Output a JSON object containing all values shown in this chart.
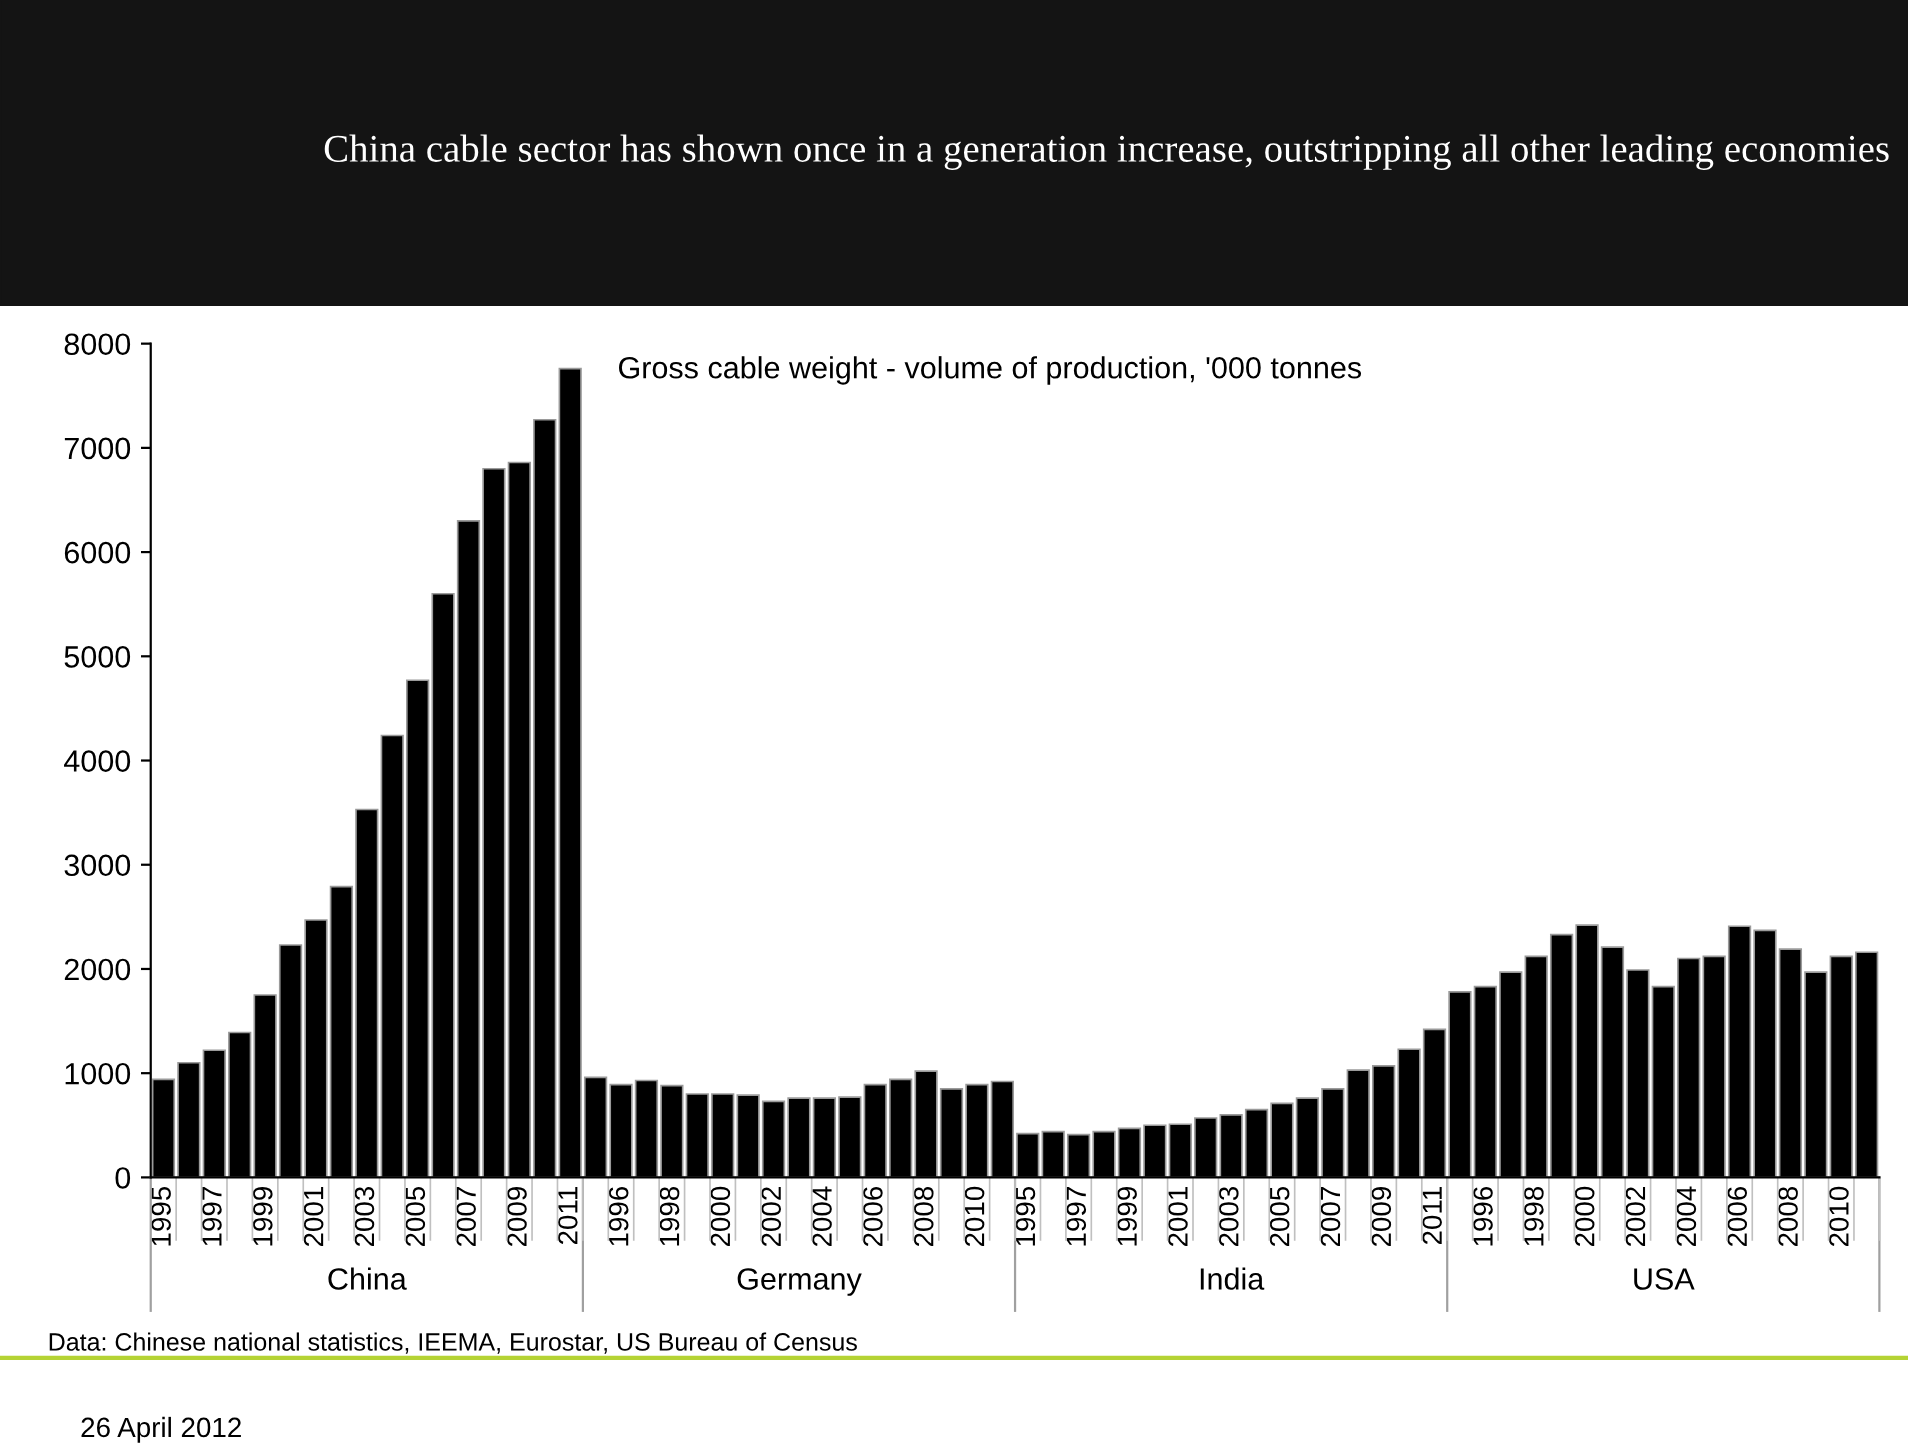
{
  "chart_data": {
    "type": "bar",
    "title": "China cable sector has shown once in a generation increase, outstripping all other leading economies",
    "categories": [
      "1995",
      null,
      "1997",
      null,
      "1999",
      null,
      "2001",
      null,
      "2003",
      null,
      "2005",
      null,
      "2007",
      null,
      "2009",
      null,
      "2011",
      null,
      "1996",
      null,
      "1998",
      null,
      "2000",
      null,
      "2002",
      null,
      "2004",
      null,
      "2006",
      null,
      "2008",
      null,
      "2010",
      null,
      "1995",
      null,
      "1997",
      null,
      "1999",
      null,
      "2001",
      null,
      "2003",
      null,
      "2005",
      null,
      "2007",
      null,
      "2009",
      null,
      "2011",
      null,
      "1996",
      null,
      "1998",
      null,
      "2000",
      null,
      "2002",
      null,
      "2004",
      null,
      "2006",
      null,
      "2008",
      null,
      "2010",
      null
    ],
    "series": [
      {
        "name": "China",
        "color": "#000000",
        "values": [
          940,
          1100,
          1220,
          1390,
          1750,
          2230,
          2470,
          2790,
          3530,
          4240,
          4770,
          5600,
          6300,
          6800,
          6860,
          7270,
          7760,
          null,
          null,
          null,
          null,
          null,
          null,
          null,
          null,
          null,
          null,
          null,
          null,
          null,
          null,
          null,
          null,
          null,
          null,
          null,
          null,
          null,
          null,
          null,
          null,
          null,
          null,
          null,
          null,
          null,
          null,
          null,
          null,
          null,
          null,
          null,
          null,
          null,
          null,
          null,
          null,
          null,
          null,
          null,
          null,
          null,
          null,
          null,
          null,
          null,
          null,
          null
        ]
      },
      {
        "name": "Germany",
        "color": "#000000",
        "values": [
          null,
          null,
          null,
          null,
          null,
          null,
          null,
          null,
          null,
          null,
          null,
          null,
          null,
          null,
          null,
          null,
          null,
          960,
          890,
          930,
          880,
          800,
          800,
          790,
          730,
          760,
          760,
          770,
          890,
          940,
          1020,
          850,
          890,
          920,
          null,
          null,
          null,
          null,
          null,
          null,
          null,
          null,
          null,
          null,
          null,
          null,
          null,
          null,
          null,
          null,
          null,
          null,
          null,
          null,
          null,
          null,
          null,
          null,
          null,
          null,
          null,
          null,
          null,
          null,
          null,
          null,
          null,
          null
        ]
      },
      {
        "name": "India",
        "color": "#000000",
        "values": [
          null,
          null,
          null,
          null,
          null,
          null,
          null,
          null,
          null,
          null,
          null,
          null,
          null,
          null,
          null,
          null,
          null,
          null,
          null,
          null,
          null,
          null,
          null,
          null,
          null,
          null,
          null,
          null,
          null,
          null,
          null,
          null,
          null,
          null,
          420,
          440,
          410,
          440,
          470,
          500,
          510,
          570,
          600,
          650,
          710,
          760,
          850,
          1030,
          1070,
          1230,
          1420,
          null,
          null,
          null,
          null,
          null,
          null,
          null,
          null,
          null,
          null,
          null,
          null,
          null,
          null,
          null,
          null,
          null
        ]
      },
      {
        "name": "USA",
        "color": "#000000",
        "values": [
          null,
          null,
          null,
          null,
          null,
          null,
          null,
          null,
          null,
          null,
          null,
          null,
          null,
          null,
          null,
          null,
          null,
          null,
          null,
          null,
          null,
          null,
          null,
          null,
          null,
          null,
          null,
          null,
          null,
          null,
          null,
          null,
          null,
          null,
          null,
          null,
          null,
          null,
          null,
          null,
          null,
          null,
          null,
          null,
          null,
          null,
          null,
          null,
          null,
          null,
          null,
          1780,
          1830,
          1970,
          2120,
          2330,
          2420,
          2210,
          1990,
          1830,
          2100,
          2120,
          2410,
          2370,
          2190,
          1970,
          2120,
          2160
        ]
      }
    ],
    "ylim": [
      0,
      8000
    ],
    "yticks": [
      0,
      1000,
      2000,
      3000,
      4000,
      5000,
      6000,
      7000,
      8000
    ],
    "grid": false,
    "legend": false,
    "annotations": [
      "Gross cable weight - volume of production, '000 tonnes",
      "Data: Chinese national statistics, IEEMA, Eurostar, US Bureau of Census",
      "26 April 2012"
    ]
  }
}
